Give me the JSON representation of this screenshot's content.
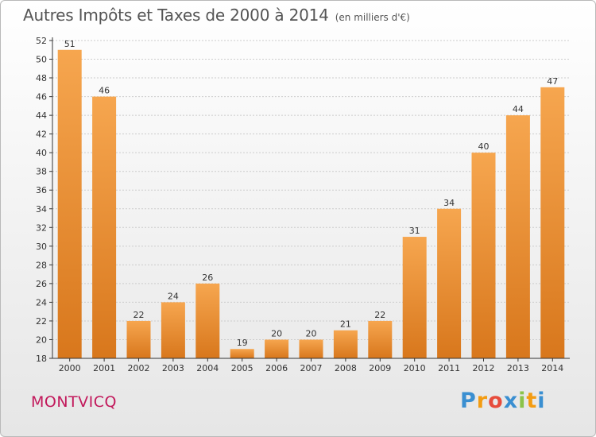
{
  "title": "Autres Impôts et Taxes de 2000 à 2014",
  "subtitle": "(en milliers d'€)",
  "commune": "MONTVICQ",
  "brand": {
    "letters": [
      "P",
      "r",
      "o",
      "x",
      "i",
      "t",
      "i"
    ],
    "colors": [
      "#3a8fd1",
      "#f39c12",
      "#e74c3c",
      "#3a8fd1",
      "#8bc34a",
      "#f39c12",
      "#3a8fd1"
    ]
  },
  "colors": {
    "bar_light": "#f6a64f",
    "bar_dark": "#d8771c",
    "axis": "#333333",
    "grid": "#cccccc"
  },
  "chart_data": {
    "type": "bar",
    "categories": [
      "2000",
      "2001",
      "2002",
      "2003",
      "2004",
      "2005",
      "2006",
      "2007",
      "2008",
      "2009",
      "2010",
      "2011",
      "2012",
      "2013",
      "2014"
    ],
    "values": [
      51,
      46,
      22,
      24,
      26,
      19,
      20,
      20,
      21,
      22,
      31,
      34,
      40,
      44,
      47
    ],
    "ylim": [
      18,
      52
    ],
    "yticks": [
      18,
      20,
      22,
      24,
      26,
      28,
      30,
      32,
      34,
      36,
      38,
      40,
      42,
      44,
      46,
      48,
      50,
      52
    ],
    "grid": true,
    "legend": "none",
    "xlabel": "",
    "ylabel": ""
  }
}
